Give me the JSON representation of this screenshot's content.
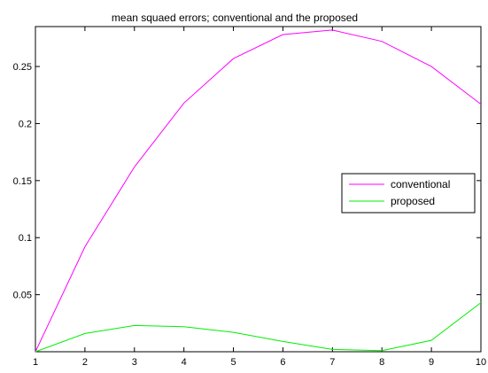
{
  "chart_data": {
    "type": "line",
    "title": "mean squaed errors; conventional and the proposed",
    "xlabel": "",
    "ylabel": "",
    "xlim": [
      1,
      10
    ],
    "ylim": [
      0,
      0.285
    ],
    "x": [
      1,
      2,
      3,
      4,
      5,
      6,
      7,
      8,
      9,
      10
    ],
    "xticks": [
      "1",
      "2",
      "3",
      "4",
      "5",
      "6",
      "7",
      "8",
      "9",
      "10"
    ],
    "yticks": [
      0.05,
      0.1,
      0.15,
      0.2,
      0.25
    ],
    "ytick_labels": [
      "0.05",
      "0.1",
      "0.15",
      "0.2",
      "0.25"
    ],
    "grid": false,
    "legend_position": "right",
    "series": [
      {
        "name": "conventional",
        "color": "#ff00ff",
        "values": [
          0.0,
          0.092,
          0.162,
          0.218,
          0.257,
          0.278,
          0.282,
          0.272,
          0.25,
          0.217
        ]
      },
      {
        "name": "proposed",
        "color": "#00ee00",
        "values": [
          0.0,
          0.016,
          0.023,
          0.022,
          0.017,
          0.009,
          0.002,
          0.001,
          0.01,
          0.043
        ]
      }
    ]
  }
}
